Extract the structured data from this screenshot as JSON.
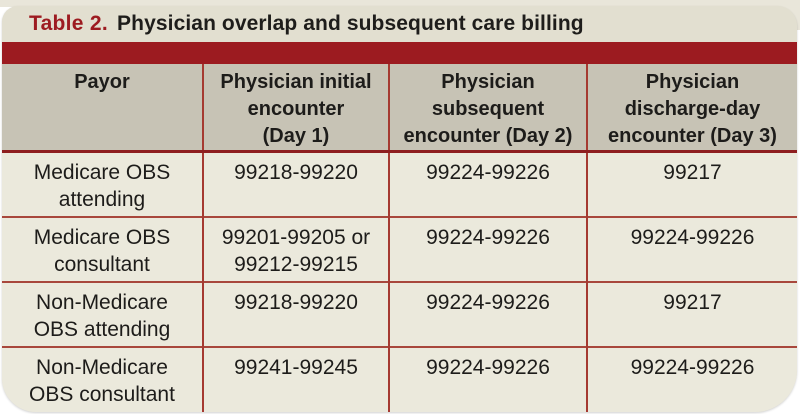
{
  "title": {
    "label": "Table 2.",
    "text": "Physician overlap and subsequent care billing"
  },
  "table": {
    "headers": [
      "Payor",
      "Physician initial\nencounter\n(Day 1)",
      "Physician\nsubsequent\nencounter (Day 2)",
      "Physician\ndischarge-day\nencounter (Day 3)"
    ],
    "rows": [
      [
        "Medicare OBS\nattending",
        "99218-99220",
        "99224-99226",
        "99217"
      ],
      [
        "Medicare OBS\nconsultant",
        "99201-99205 or\n99212-99215",
        "99224-99226",
        "99224-99226"
      ],
      [
        "Non-Medicare\nOBS attending",
        "99218-99220",
        "99224-99226",
        "99217"
      ],
      [
        "Non-Medicare\nOBS consultant",
        "99241-99245",
        "99224-99226",
        "99224-99226"
      ]
    ]
  },
  "colors": {
    "accent_red": "#9d1b21",
    "band_red": "#9c1b20",
    "divider_red": "#a53a31",
    "title_bg": "#e2dfd0",
    "header_bg": "#c7c3b5",
    "body_bg": "#ebe9dc",
    "text": "#1d1c1a"
  }
}
